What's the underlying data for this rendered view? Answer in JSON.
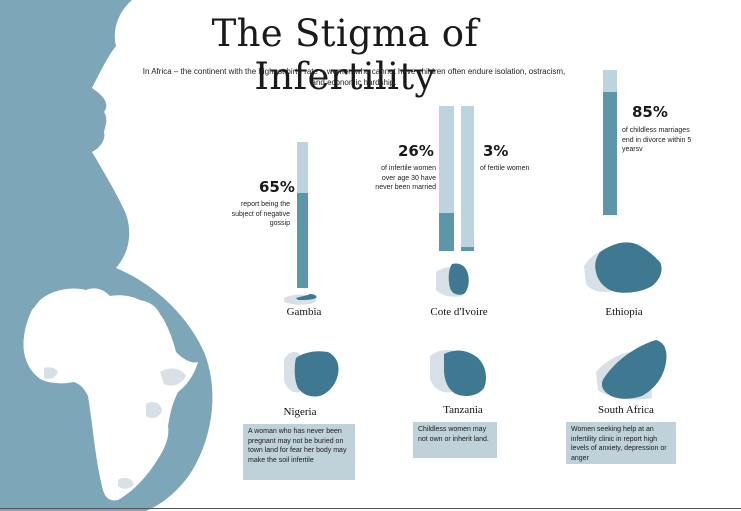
{
  "title": "The Stigma of Infertility",
  "subtitle": "In Africa – the continent with the highest birth rate – women who cannot have children often endure isolation, ostracism, and economic hardship.",
  "colors": {
    "silhouette": "#7ea6b9",
    "bar_light": "#bdd3de",
    "bar_dark": "#5b97a8",
    "country_highlight": "#3f7891",
    "country_gray": "#d6e0e6",
    "note_bg": "#bfd2da"
  },
  "chart_data": {
    "type": "bar",
    "categories": [
      "Gambia",
      "Cote d'Ivoire (infertile women)",
      "Cote d'Ivoire (fertile women)",
      "Ethiopia"
    ],
    "series": [
      {
        "values": [
          65,
          26,
          3,
          85
        ]
      }
    ],
    "ylim": [
      0,
      100
    ]
  },
  "stats": [
    {
      "percent": "65%",
      "value": 65,
      "description": "report being the subject of negative gossip"
    },
    {
      "percent": "26%",
      "value": 26,
      "description": "of infertile women over age 30 have never been married"
    },
    {
      "percent": "3%",
      "value": 3,
      "description": "of fertile women"
    },
    {
      "percent": "85%",
      "value": 85,
      "description": "of childless marriages end in divorce within 5 yearsv"
    }
  ],
  "countries": {
    "gambia": "Gambia",
    "cote": "Cote d'Ivoire",
    "ethiopia": "Ethiopia",
    "nigeria": "Nigeria",
    "tanzania": "Tanzania",
    "south_africa": "South Africa"
  },
  "notes": {
    "nigeria": "A woman who has never been pregnant may not be buried on town land for fear her body may make the soil infertile",
    "tanzania": "Childless women may not own or inherit land.",
    "south_africa": "Women seeking help at an infertility clinic in report high levels of anxiety, depression or anger"
  }
}
